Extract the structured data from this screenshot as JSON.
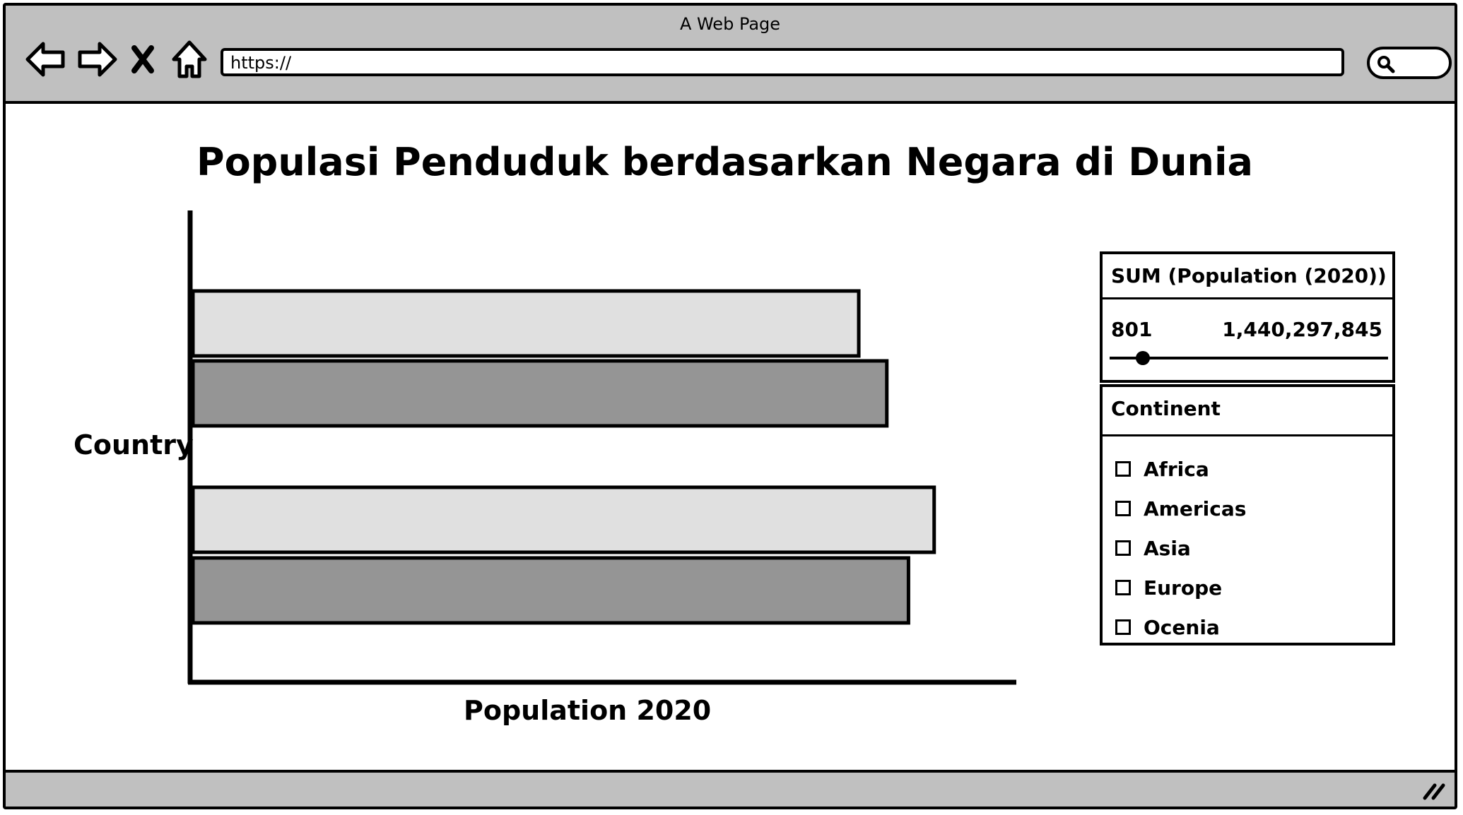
{
  "window": {
    "title": "A Web Page"
  },
  "toolbar": {
    "back_icon": "back-arrow-icon",
    "forward_icon": "forward-arrow-icon",
    "stop_icon": "close-x-icon",
    "home_icon": "home-icon",
    "url": "https://",
    "search_icon": "search-icon"
  },
  "page": {
    "title": "Populasi Penduduk berdasarkan Negara di Dunia"
  },
  "chart_data": {
    "type": "bar",
    "orientation": "horizontal",
    "title": "Populasi Penduduk berdasarkan Negara di Dunia",
    "xlabel": "Population 2020",
    "ylabel": "Country",
    "xlim": [
      0,
      100
    ],
    "grid": false,
    "bars": [
      {
        "value": 83,
        "color": "#e0e0e0"
      },
      {
        "value": 86.5,
        "color": "#959595"
      },
      {
        "value": 92.4,
        "color": "#e0e0e0"
      },
      {
        "value": 89.2,
        "color": "#959595"
      }
    ]
  },
  "filters": {
    "range": {
      "header": "SUM (Population (2020))",
      "min_label": "801",
      "max_label": "1,440,297,845",
      "value_fraction": 0.12
    },
    "continent": {
      "header": "Continent",
      "options": [
        {
          "label": "Africa",
          "checked": false
        },
        {
          "label": "Americas",
          "checked": false
        },
        {
          "label": "Asia",
          "checked": false
        },
        {
          "label": "Europe",
          "checked": false
        },
        {
          "label": "Ocenia",
          "checked": false
        }
      ]
    }
  },
  "colors": {
    "chrome": "#c0c0c0",
    "bar_light": "#e0e0e0",
    "bar_dark": "#959595",
    "stroke": "#000000"
  }
}
